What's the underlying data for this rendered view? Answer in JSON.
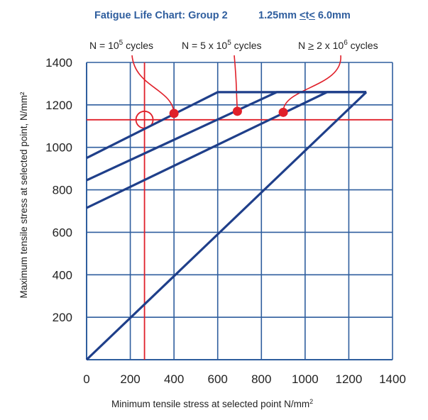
{
  "header": {
    "title": "Fatigue Life Chart: Group 2",
    "thickness_prefix": "1.25mm ",
    "thickness_le1": "<",
    "thickness_mid": "t",
    "thickness_le2": "<",
    "thickness_suffix": " 6.0mm"
  },
  "callouts": [
    {
      "prefix": "N = 10",
      "exp": "5",
      "suffix": " cycles"
    },
    {
      "prefix": "N = 5 x 10",
      "exp": "5",
      "suffix": " cycles"
    },
    {
      "prefix_a": "N ",
      "ge": ">",
      "prefix_b": " 2 x 10",
      "exp": "6",
      "suffix": " cycles"
    }
  ],
  "axes": {
    "y_label": "Maximum tensile stress at selected point, N/mm²",
    "x_label": "Minimum tensile stress at selected point N/mm",
    "x_label_exp": "2"
  },
  "colors": {
    "grid": "#2f5e9e",
    "series": "#1f3f8a",
    "marker": "#e0202a",
    "title": "#2f5e9e"
  },
  "chart_data": {
    "type": "line",
    "title": "Fatigue Life Chart: Group 2",
    "subtitle": "1.25mm ≤t≤ 6.0mm",
    "xlabel": "Minimum tensile stress at selected point N/mm²",
    "ylabel": "Maximum tensile stress at selected point, N/mm²",
    "xlim": [
      0,
      1400
    ],
    "ylim": [
      0,
      1400
    ],
    "xticks": [
      0,
      200,
      400,
      600,
      800,
      1000,
      1200,
      1400
    ],
    "yticks": [
      200,
      400,
      600,
      800,
      1000,
      1200,
      1400
    ],
    "grid": true,
    "series": [
      {
        "name": "N = 10^5 cycles",
        "x": [
          0,
          600,
          1280
        ],
        "y": [
          950,
          1260,
          1260
        ]
      },
      {
        "name": "N = 5 x 10^5 cycles",
        "x": [
          0,
          870,
          1280
        ],
        "y": [
          845,
          1260,
          1260
        ]
      },
      {
        "name": "N ≥ 2 x 10^6 cycles",
        "x": [
          0,
          1100,
          1280
        ],
        "y": [
          715,
          1260,
          1260
        ]
      },
      {
        "name": "Static limit",
        "x": [
          0,
          1280
        ],
        "y": [
          0,
          1260
        ]
      }
    ],
    "reference_lines": {
      "x": 265,
      "y": 1130
    },
    "markers": [
      {
        "series": "N = 10^5 cycles",
        "x": 400,
        "y": 1160
      },
      {
        "series": "N = 5 x 10^5 cycles",
        "x": 690,
        "y": 1170
      },
      {
        "series": "N ≥ 2 x 10^6 cycles",
        "x": 900,
        "y": 1165
      }
    ],
    "intersection_circle": {
      "x": 265,
      "y": 1130
    }
  }
}
